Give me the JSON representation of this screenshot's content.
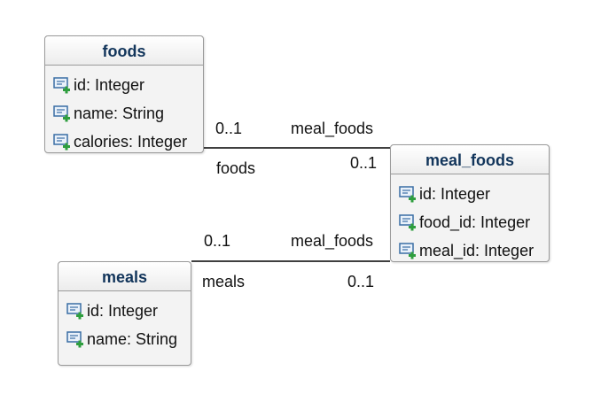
{
  "entities": {
    "foods": {
      "title": "foods",
      "attributes": [
        "id: Integer",
        "name: String",
        "calories: Integer"
      ]
    },
    "meal_foods": {
      "title": "meal_foods",
      "attributes": [
        "id: Integer",
        "food_id: Integer",
        "meal_id: Integer"
      ]
    },
    "meals": {
      "title": "meals",
      "attributes": [
        "id: Integer",
        "name: String"
      ]
    }
  },
  "relations": {
    "foods_meal_foods": {
      "near_mult": "0..1",
      "near_role": "foods",
      "far_role": "meal_foods",
      "far_mult": "0..1"
    },
    "meals_meal_foods": {
      "near_mult": "0..1",
      "near_role": "meals",
      "far_role": "meal_foods",
      "far_mult": "0..1"
    }
  },
  "icons": {
    "attribute": "attribute-plus-icon"
  },
  "colors": {
    "title": "#12355b",
    "icon_blue": "#3a6ea5",
    "icon_green": "#2e9e3e"
  }
}
